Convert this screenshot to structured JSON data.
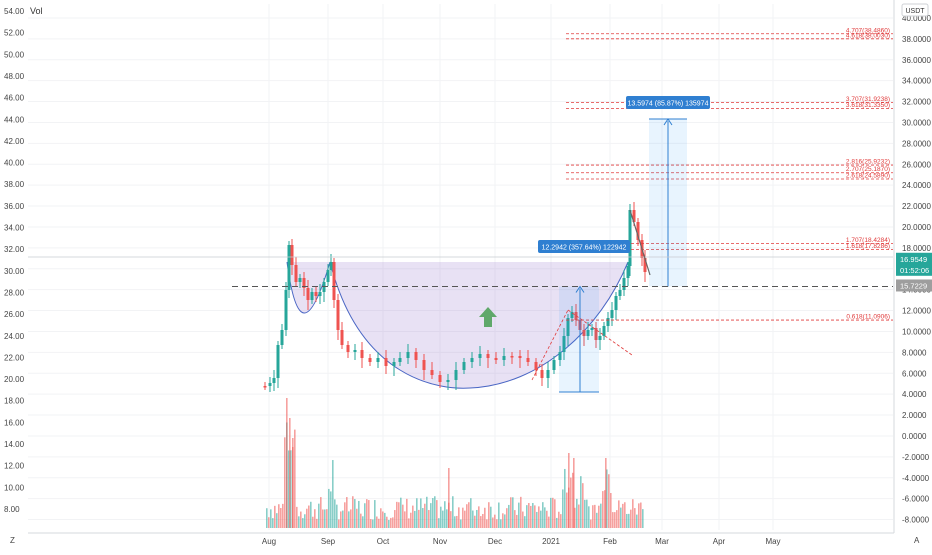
{
  "chart_data": {
    "type": "candlestick",
    "vol_label": "Vol",
    "currency_badge": "USDT",
    "left_axis": {
      "ticks": [
        "54.00",
        "52.00",
        "50.00",
        "48.00",
        "46.00",
        "44.00",
        "42.00",
        "40.00",
        "38.00",
        "36.00",
        "34.00",
        "32.00",
        "30.00",
        "28.00",
        "26.00",
        "24.00",
        "22.00",
        "20.00",
        "18.00",
        "16.00",
        "14.00",
        "12.00",
        "10.00",
        "8.00"
      ]
    },
    "right_axis": {
      "ticks": [
        "40.0000",
        "38.0000",
        "36.0000",
        "34.0000",
        "32.0000",
        "30.0000",
        "28.0000",
        "26.0000",
        "24.0000",
        "22.0000",
        "20.0000",
        "18.0000",
        "16.0000",
        "14.0000",
        "12.0000",
        "10.0000",
        "8.0000",
        "6.0000",
        "4.0000",
        "2.0000",
        "0.0000",
        "-2.0000",
        "-4.0000",
        "-6.0000",
        "-8.0000"
      ],
      "ylim": [
        -9,
        41
      ],
      "price_tags": [
        {
          "text": "16.9549",
          "value": 16.9549,
          "color": "#26a69a"
        },
        {
          "text": "01:52:06",
          "value": 15.9,
          "color": "#26a69a"
        },
        {
          "text": "15.7229",
          "value": 14.4,
          "color": "#9e9e9e"
        }
      ]
    },
    "x_axis": {
      "labels": [
        "Aug",
        "Sep",
        "Oct",
        "Nov",
        "Dec",
        "2021",
        "Feb",
        "Mar",
        "Apr",
        "May"
      ]
    },
    "resistance_level": 14.3,
    "fib_levels": [
      {
        "label": "4.707(38.4860)",
        "value": 38.486
      },
      {
        "label": "4.618(38.0030)",
        "value": 38.003
      },
      {
        "label": "3.707(31.9238)",
        "value": 31.9238
      },
      {
        "label": "3.618(31.3350)",
        "value": 31.335
      },
      {
        "label": "2.816(25.9232)",
        "value": 25.9232
      },
      {
        "label": "2.707(25.1870)",
        "value": 25.187
      },
      {
        "label": "2.618(24.5890)",
        "value": 24.589
      },
      {
        "label": "1.707(18.4284)",
        "value": 18.4284
      },
      {
        "label": "1.618(17.8286)",
        "value": 17.8286
      },
      {
        "label": "0.618(11.0906)",
        "value": 11.0906
      }
    ],
    "measure_labels": [
      {
        "text": "12.2942 (357.64%) 122942"
      },
      {
        "text": "13.5974 (85.87%) 135974"
      }
    ],
    "corner_labels": {
      "left": "Z",
      "right": "A"
    }
  }
}
